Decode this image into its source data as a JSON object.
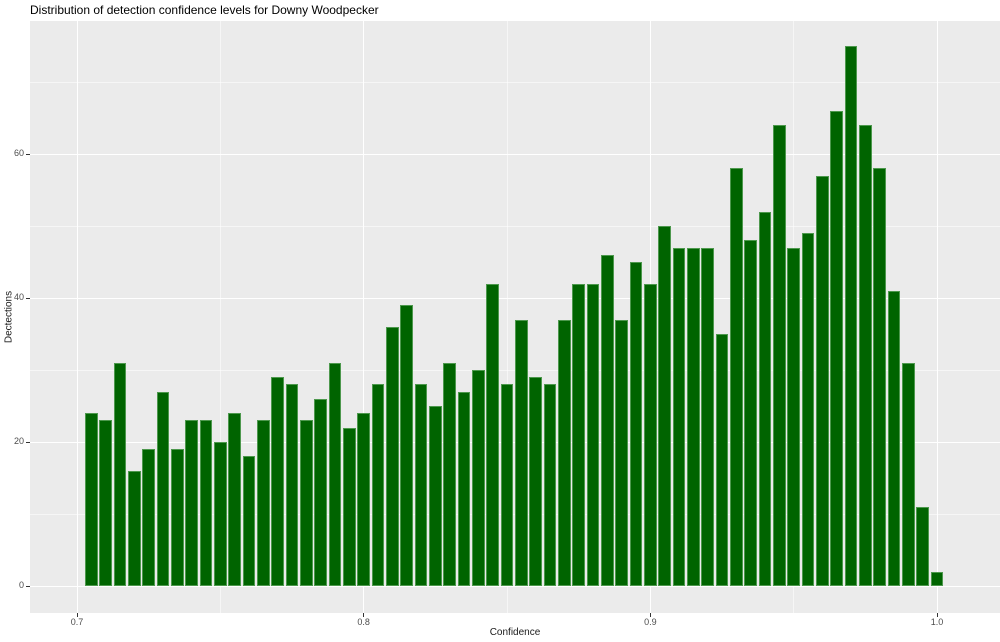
{
  "title": "Distribution of detection confidence levels for Downy Woodpecker",
  "chart_data": {
    "type": "bar",
    "subtype": "histogram",
    "title": "Distribution of detection confidence levels for Downy Woodpecker",
    "xlabel": "Confidence",
    "ylabel": "Dectections",
    "legend": "none",
    "grid": "on",
    "bar_color": "#006400",
    "panel_bg": "#EBEBEB",
    "grid_major_color": "#FFFFFF",
    "grid_minor_opacity": 0.55,
    "tick_label_color": "#4D4D4D",
    "axis_title_color": "#1A1A1A",
    "title_color": "#000000",
    "xlim": [
      0.684,
      1.023
    ],
    "ylim": [
      -3.75,
      78.5
    ],
    "x_ticks": [
      0.7,
      0.8,
      0.9,
      1.0
    ],
    "x_tick_labels": [
      "0.7",
      "0.8",
      "0.9",
      "1.0"
    ],
    "x_minor_ticks": [
      0.75,
      0.85,
      0.95
    ],
    "y_ticks": [
      0,
      20,
      40,
      60
    ],
    "y_tick_labels": [
      "0",
      "20",
      "40",
      "60"
    ],
    "y_minor_ticks": [
      10,
      30,
      50,
      70
    ],
    "bin_start": 0.7025,
    "bin_width": 0.005,
    "bin_centers": [
      0.705,
      0.71,
      0.715,
      0.72,
      0.725,
      0.73,
      0.735,
      0.74,
      0.745,
      0.75,
      0.755,
      0.76,
      0.765,
      0.77,
      0.775,
      0.78,
      0.785,
      0.79,
      0.795,
      0.8,
      0.805,
      0.81,
      0.815,
      0.82,
      0.825,
      0.83,
      0.835,
      0.84,
      0.845,
      0.85,
      0.855,
      0.86,
      0.865,
      0.87,
      0.875,
      0.88,
      0.885,
      0.89,
      0.895,
      0.9,
      0.905,
      0.91,
      0.915,
      0.92,
      0.925,
      0.93,
      0.935,
      0.94,
      0.945,
      0.95,
      0.955,
      0.96,
      0.965,
      0.97,
      0.975,
      0.98,
      0.985,
      0.99,
      0.995,
      1.0
    ],
    "values": [
      24,
      23,
      31,
      16,
      19,
      27,
      19,
      23,
      23,
      20,
      24,
      18,
      23,
      29,
      28,
      23,
      26,
      31,
      22,
      24,
      28,
      36,
      39,
      28,
      25,
      31,
      27,
      30,
      42,
      28,
      37,
      29,
      28,
      37,
      42,
      42,
      46,
      37,
      45,
      42,
      50,
      47,
      47,
      47,
      35,
      58,
      48,
      52,
      64,
      47,
      49,
      57,
      66,
      75,
      64,
      58,
      41,
      31,
      11,
      2
    ]
  }
}
